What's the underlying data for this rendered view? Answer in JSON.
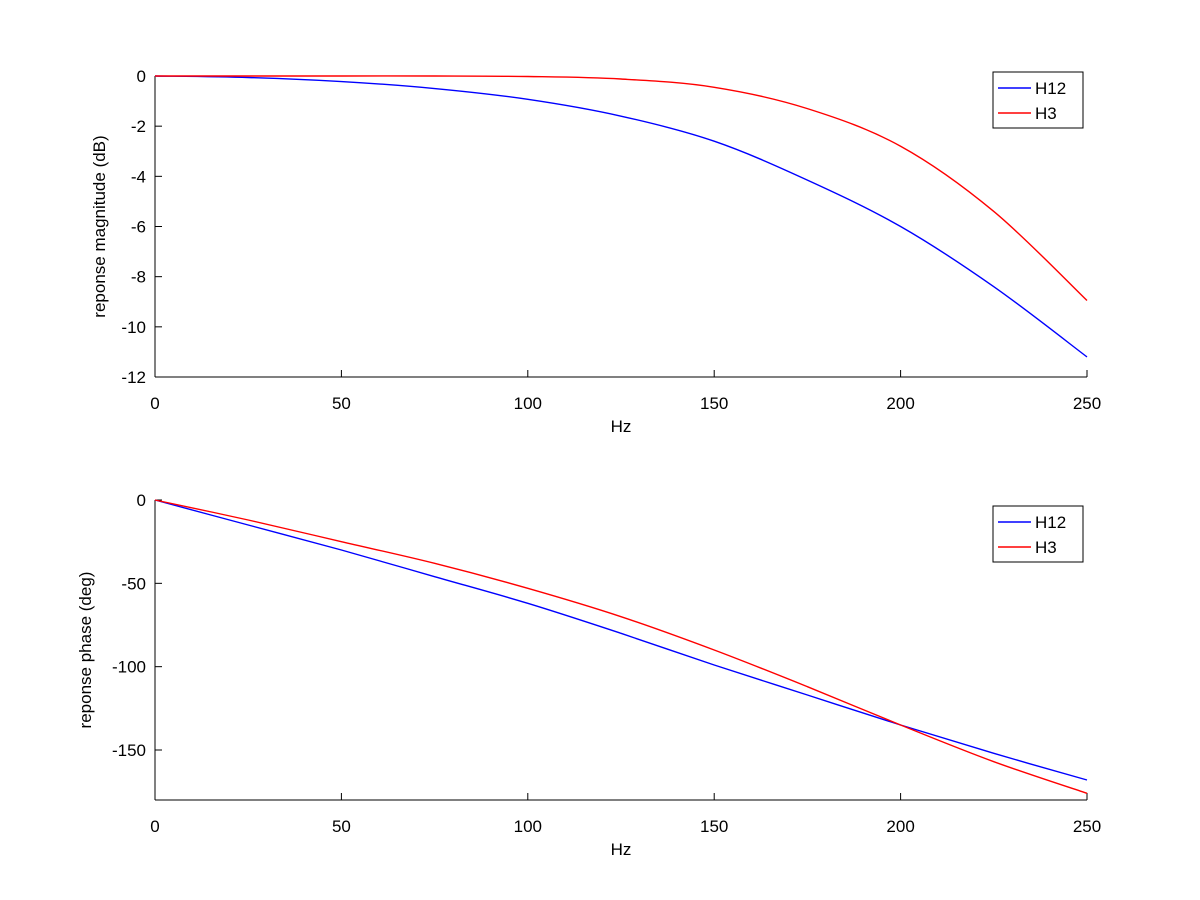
{
  "colors": {
    "H12": "#0000ff",
    "H3": "#ff0000",
    "axis": "#000000",
    "background": "#ffffff"
  },
  "chart_data": [
    {
      "type": "line",
      "xlabel": "Hz",
      "ylabel": "reponse magnitude (dB)",
      "xlim": [
        0,
        250
      ],
      "ylim": [
        -12,
        0
      ],
      "xticks": [
        0,
        50,
        100,
        150,
        200,
        250
      ],
      "yticks": [
        0,
        -2,
        -4,
        -6,
        -8,
        -10,
        -12
      ],
      "xtick_labels": [
        "0",
        "50",
        "100",
        "150",
        "200",
        "250"
      ],
      "ytick_labels": [
        "0",
        "-2",
        "-4",
        "-6",
        "-8",
        "-10",
        "-12"
      ],
      "grid": false,
      "legend": "top-right",
      "x": [
        0,
        25,
        50,
        75,
        100,
        125,
        150,
        175,
        200,
        225,
        250
      ],
      "series": [
        {
          "name": "H12",
          "values": [
            0,
            -0.06,
            -0.22,
            -0.5,
            -0.93,
            -1.6,
            -2.6,
            -4.15,
            -6.0,
            -8.4,
            -11.2
          ]
        },
        {
          "name": "H3",
          "values": [
            0,
            0,
            0,
            0,
            -0.02,
            -0.12,
            -0.45,
            -1.3,
            -2.8,
            -5.4,
            -8.95
          ]
        }
      ]
    },
    {
      "type": "line",
      "xlabel": "Hz",
      "ylabel": "reponse phase (deg)",
      "xlim": [
        0,
        250
      ],
      "ylim": [
        -180,
        0
      ],
      "xticks": [
        0,
        50,
        100,
        150,
        200,
        250
      ],
      "yticks": [
        0,
        -50,
        -100,
        -150
      ],
      "xtick_labels": [
        "0",
        "50",
        "100",
        "150",
        "200",
        "250"
      ],
      "ytick_labels": [
        "0",
        "-50",
        "-100",
        "-150"
      ],
      "grid": false,
      "legend": "top-right",
      "x": [
        0,
        25,
        50,
        75,
        100,
        125,
        150,
        175,
        200,
        225,
        250
      ],
      "series": [
        {
          "name": "H12",
          "values": [
            0,
            -15,
            -30,
            -46,
            -62,
            -80,
            -99,
            -117,
            -135,
            -152,
            -168
          ]
        },
        {
          "name": "H3",
          "values": [
            0,
            -12,
            -25,
            -38,
            -53,
            -70,
            -90,
            -112,
            -135,
            -157,
            -176
          ]
        }
      ]
    }
  ]
}
